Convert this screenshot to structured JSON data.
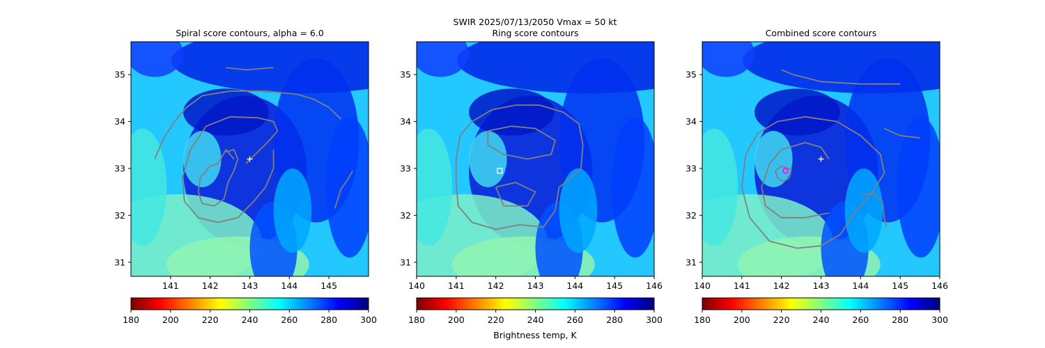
{
  "suptitle": "SWIR  2025/07/13/2050    Vmax = 50 kt",
  "colorbar_label": "Brightness temp, K",
  "colormap": [
    "#7f0000",
    "#ff0000",
    "#ff8000",
    "#ffff00",
    "#80ff80",
    "#00ffff",
    "#0080ff",
    "#0000ff",
    "#00007f"
  ],
  "contour_color": "#808080",
  "chart_data": [
    {
      "type": "heatmap",
      "title": "Spiral score contours, alpha =  6.0",
      "xlim": [
        140,
        146
      ],
      "ylim": [
        30.7,
        35.7
      ],
      "xticks": [
        "141",
        "142",
        "143",
        "144",
        "145"
      ],
      "yticks": [
        "31",
        "32",
        "33",
        "34",
        "35"
      ],
      "colorbar": {
        "min": 180,
        "max": 300,
        "ticks": [
          "180",
          "200",
          "220",
          "240",
          "260",
          "280",
          "300"
        ]
      },
      "markers": [
        {
          "shape": "plus",
          "color": "#ffffff",
          "x": 143.0,
          "y": 33.2
        }
      ],
      "contours": [
        [
          [
            140.6,
            33.2
          ],
          [
            140.8,
            33.6
          ],
          [
            141.1,
            34.0
          ],
          [
            141.4,
            34.3
          ],
          [
            141.8,
            34.55
          ],
          [
            142.5,
            34.65
          ],
          [
            143.4,
            34.65
          ],
          [
            144.2,
            34.58
          ],
          [
            144.6,
            34.48
          ],
          [
            145.0,
            34.3
          ],
          [
            145.3,
            34.05
          ]
        ],
        [
          [
            142.4,
            35.15
          ],
          [
            142.9,
            35.1
          ],
          [
            143.6,
            35.15
          ]
        ],
        [
          [
            142.9,
            33.1
          ],
          [
            143.2,
            33.35
          ],
          [
            143.5,
            33.6
          ],
          [
            143.7,
            33.8
          ],
          [
            143.6,
            34.0
          ],
          [
            143.2,
            34.08
          ],
          [
            142.5,
            34.1
          ],
          [
            141.9,
            33.9
          ],
          [
            141.5,
            33.4
          ],
          [
            141.3,
            32.8
          ],
          [
            141.35,
            32.3
          ],
          [
            141.7,
            31.95
          ],
          [
            142.2,
            31.85
          ],
          [
            142.7,
            31.95
          ],
          [
            143.1,
            32.3
          ],
          [
            143.4,
            32.6
          ],
          [
            143.6,
            33.0
          ],
          [
            143.6,
            33.4
          ]
        ],
        [
          [
            142.6,
            33.2
          ],
          [
            142.4,
            33.4
          ],
          [
            142.2,
            33.1
          ],
          [
            142.0,
            33.05
          ],
          [
            141.75,
            32.8
          ],
          [
            141.7,
            32.5
          ],
          [
            141.8,
            32.25
          ],
          [
            142.1,
            32.2
          ],
          [
            142.35,
            32.35
          ],
          [
            142.45,
            32.7
          ],
          [
            142.6,
            32.95
          ],
          [
            142.7,
            33.2
          ],
          [
            142.6,
            33.4
          ],
          [
            142.4,
            33.35
          ]
        ],
        [
          [
            145.15,
            32.15
          ],
          [
            145.3,
            32.55
          ],
          [
            145.5,
            32.8
          ],
          [
            145.6,
            32.95
          ]
        ]
      ]
    },
    {
      "type": "heatmap",
      "title": "Ring score contours",
      "xlim": [
        140,
        146
      ],
      "ylim": [
        30.7,
        35.7
      ],
      "xticks": [
        "140",
        "141",
        "142",
        "143",
        "144",
        "145",
        "146"
      ],
      "yticks": [
        "31",
        "32",
        "33",
        "34",
        "35"
      ],
      "colorbar": {
        "min": 180,
        "max": 300,
        "ticks": [
          "180",
          "200",
          "220",
          "240",
          "260",
          "280",
          "300"
        ]
      },
      "markers": [
        {
          "shape": "square",
          "color": "#ffffff",
          "x": 142.1,
          "y": 32.95
        }
      ],
      "contours": [
        [
          [
            141.0,
            33.2
          ],
          [
            141.1,
            33.7
          ],
          [
            141.4,
            34.0
          ],
          [
            141.9,
            34.25
          ],
          [
            142.5,
            34.35
          ],
          [
            143.1,
            34.35
          ],
          [
            143.7,
            34.2
          ],
          [
            144.1,
            33.95
          ],
          [
            144.2,
            33.5
          ],
          [
            144.15,
            33.0
          ],
          [
            143.9,
            32.8
          ],
          [
            143.6,
            32.6
          ],
          [
            143.5,
            32.1
          ],
          [
            143.2,
            31.75
          ],
          [
            142.6,
            31.8
          ],
          [
            142.0,
            31.7
          ],
          [
            141.4,
            31.85
          ],
          [
            141.05,
            32.2
          ],
          [
            141.0,
            32.7
          ],
          [
            141.0,
            33.2
          ]
        ],
        [
          [
            141.8,
            33.8
          ],
          [
            142.4,
            33.9
          ],
          [
            143.0,
            33.85
          ],
          [
            143.5,
            33.6
          ],
          [
            143.4,
            33.3
          ],
          [
            142.8,
            33.2
          ],
          [
            142.2,
            33.3
          ],
          [
            141.8,
            33.5
          ],
          [
            141.8,
            33.8
          ]
        ],
        [
          [
            142.0,
            32.6
          ],
          [
            142.5,
            32.7
          ],
          [
            143.0,
            32.5
          ],
          [
            142.8,
            32.2
          ],
          [
            142.2,
            32.2
          ],
          [
            142.0,
            32.6
          ]
        ]
      ]
    },
    {
      "type": "heatmap",
      "title": "Combined score contours",
      "xlim": [
        140,
        146
      ],
      "ylim": [
        30.7,
        35.7
      ],
      "xticks": [
        "140",
        "141",
        "142",
        "143",
        "144",
        "145",
        "146"
      ],
      "yticks": [
        "31",
        "32",
        "33",
        "34",
        "35"
      ],
      "colorbar": {
        "min": 180,
        "max": 300,
        "ticks": [
          "180",
          "200",
          "220",
          "240",
          "260",
          "280",
          "300"
        ]
      },
      "markers": [
        {
          "shape": "plus",
          "color": "#ffffff",
          "x": 143.0,
          "y": 33.2
        },
        {
          "shape": "circle",
          "color": "#ff00ff",
          "x": 142.1,
          "y": 32.95
        }
      ],
      "contours": [
        [
          [
            142.0,
            35.1
          ],
          [
            142.3,
            35.0
          ],
          [
            143.0,
            34.85
          ],
          [
            144.0,
            34.8
          ],
          [
            145.0,
            34.8
          ]
        ],
        [
          [
            144.6,
            33.85
          ],
          [
            145.0,
            33.7
          ],
          [
            145.5,
            33.65
          ]
        ],
        [
          [
            141.2,
            31.95
          ],
          [
            141.0,
            32.6
          ],
          [
            141.1,
            33.3
          ],
          [
            141.4,
            33.75
          ],
          [
            141.9,
            34.0
          ],
          [
            142.6,
            34.1
          ],
          [
            143.4,
            34.0
          ],
          [
            144.0,
            33.7
          ],
          [
            144.5,
            33.3
          ],
          [
            144.6,
            32.9
          ],
          [
            144.3,
            32.5
          ],
          [
            143.8,
            32.0
          ],
          [
            143.5,
            31.6
          ],
          [
            143.0,
            31.35
          ],
          [
            142.4,
            31.3
          ],
          [
            141.7,
            31.45
          ],
          [
            141.2,
            31.95
          ]
        ],
        [
          [
            143.2,
            32.05
          ],
          [
            142.6,
            31.95
          ],
          [
            142.0,
            31.95
          ],
          [
            141.6,
            32.2
          ],
          [
            141.5,
            32.6
          ],
          [
            141.7,
            33.1
          ],
          [
            142.0,
            33.4
          ],
          [
            142.6,
            33.55
          ],
          [
            143.0,
            33.45
          ],
          [
            143.2,
            33.2
          ]
        ],
        [
          [
            144.0,
            32.45
          ],
          [
            144.3,
            32.45
          ],
          [
            144.55,
            32.3
          ],
          [
            144.6,
            31.95
          ],
          [
            144.65,
            31.75
          ]
        ],
        [
          [
            141.85,
            32.95
          ],
          [
            142.0,
            33.05
          ],
          [
            142.25,
            32.98
          ],
          [
            142.2,
            32.8
          ],
          [
            142.05,
            32.72
          ],
          [
            141.9,
            32.8
          ],
          [
            141.85,
            32.95
          ]
        ]
      ]
    }
  ]
}
